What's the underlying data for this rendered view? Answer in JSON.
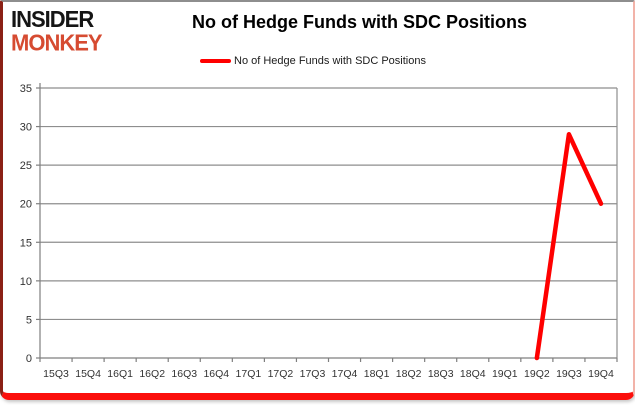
{
  "logo": {
    "line1": "INSIDER",
    "line2": "MONKEY"
  },
  "title": "No of Hedge Funds with SDC Positions",
  "legend": {
    "label": "No of Hedge Funds with SDC Positions",
    "marker_color": "#ff0000"
  },
  "chart_data": {
    "type": "line",
    "title": "No of Hedge Funds with SDC Positions",
    "categories": [
      "15Q3",
      "15Q4",
      "16Q1",
      "16Q2",
      "16Q3",
      "16Q4",
      "17Q1",
      "17Q2",
      "17Q3",
      "17Q4",
      "18Q1",
      "18Q2",
      "18Q3",
      "18Q4",
      "19Q1",
      "19Q2",
      "19Q3",
      "19Q4"
    ],
    "series": [
      {
        "name": "No of Hedge Funds with SDC Positions",
        "color": "#ff0000",
        "values": [
          null,
          null,
          null,
          null,
          null,
          null,
          null,
          null,
          null,
          null,
          null,
          null,
          null,
          null,
          null,
          0,
          29,
          20
        ]
      }
    ],
    "xlabel": "",
    "ylabel": "",
    "ylim": [
      0,
      35
    ],
    "yticks": [
      0,
      5,
      10,
      15,
      20,
      25,
      30,
      35
    ],
    "grid": true,
    "legend_position": "top"
  },
  "colors": {
    "line": "#ff0000",
    "gridline": "#8e8e8e",
    "axis": "#7f7f7f",
    "tick_label": "#333333",
    "logo_monkey": "#d64b31",
    "border_bottom": "#fb0f0c"
  }
}
